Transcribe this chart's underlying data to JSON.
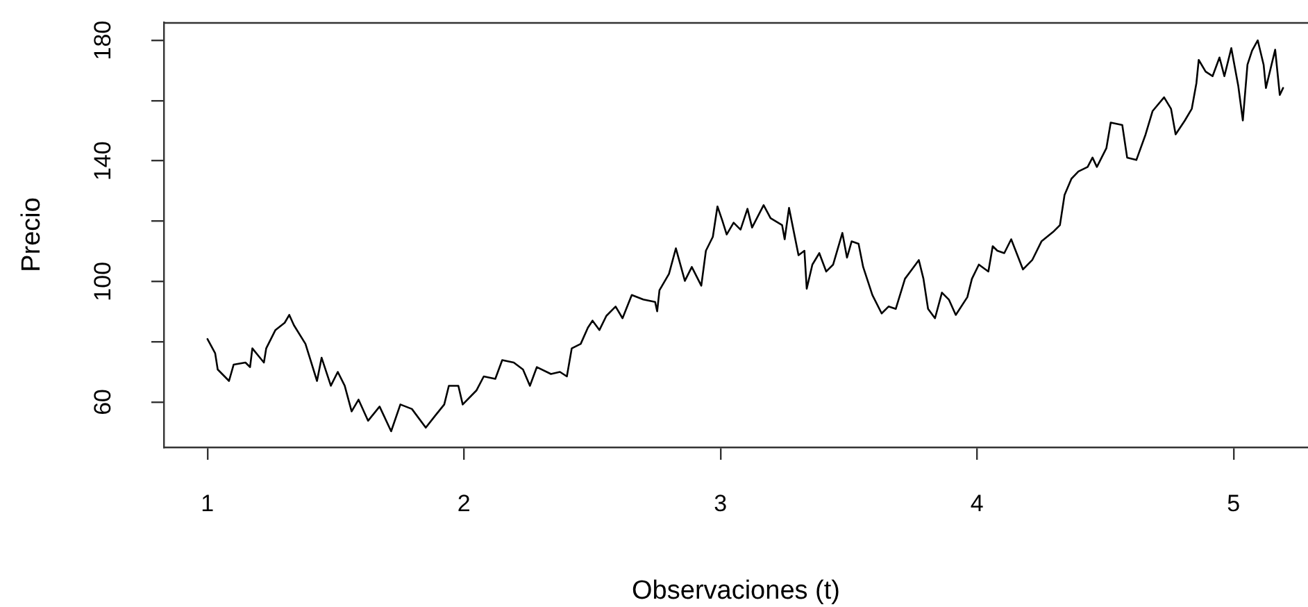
{
  "chart_data": {
    "type": "line",
    "xlabel": "Observaciones (t)",
    "ylabel": "Precio",
    "color": "#000000",
    "marker": "none",
    "x": [
      1.0,
      1.03,
      1.04,
      1.084,
      1.102,
      1.148,
      1.166,
      1.175,
      1.22,
      1.229,
      1.265,
      1.301,
      1.319,
      1.337,
      1.382,
      1.427,
      1.445,
      1.481,
      1.508,
      1.535,
      1.562,
      1.589,
      1.626,
      1.671,
      1.716,
      1.752,
      1.797,
      1.851,
      1.887,
      1.923,
      1.941,
      1.978,
      1.995,
      2.049,
      2.077,
      2.122,
      2.149,
      2.194,
      2.23,
      2.257,
      2.284,
      2.339,
      2.374,
      2.401,
      2.42,
      2.455,
      2.483,
      2.501,
      2.528,
      2.555,
      2.591,
      2.618,
      2.654,
      2.699,
      2.745,
      2.753,
      2.762,
      2.799,
      2.826,
      2.861,
      2.888,
      2.925,
      2.943,
      2.97,
      2.988,
      3.007,
      3.024,
      3.051,
      3.078,
      3.105,
      3.123,
      3.168,
      3.195,
      3.24,
      3.25,
      3.267,
      3.304,
      3.327,
      3.336,
      3.358,
      3.385,
      3.412,
      3.439,
      3.475,
      3.493,
      3.511,
      3.538,
      3.556,
      3.592,
      3.628,
      3.655,
      3.683,
      3.719,
      3.746,
      3.773,
      3.791,
      3.809,
      3.836,
      3.863,
      3.89,
      3.917,
      3.962,
      3.98,
      4.007,
      4.044,
      4.061,
      4.079,
      4.106,
      4.133,
      4.179,
      4.215,
      4.251,
      4.296,
      4.323,
      4.341,
      4.368,
      4.395,
      4.431,
      4.45,
      4.467,
      4.504,
      4.521,
      4.566,
      4.585,
      4.621,
      4.657,
      4.684,
      4.729,
      4.756,
      4.774,
      4.81,
      4.837,
      4.855,
      4.864,
      4.891,
      4.918,
      4.945,
      4.964,
      4.991,
      5.018,
      5.036,
      5.054,
      5.072,
      5.094,
      5.117,
      5.126,
      5.162,
      5.18,
      5.193
    ],
    "values": [
      80.9,
      76.2,
      70.8,
      67.0,
      72.4,
      73.1,
      71.6,
      77.8,
      73.1,
      77.8,
      83.9,
      86.3,
      88.9,
      85.5,
      79.3,
      67.0,
      74.7,
      65.4,
      70.0,
      65.4,
      56.9,
      60.8,
      53.8,
      58.5,
      50.3,
      59.2,
      57.7,
      51.5,
      55.4,
      59.2,
      65.4,
      65.4,
      59.2,
      63.9,
      68.5,
      67.7,
      73.9,
      73.1,
      70.8,
      65.4,
      71.6,
      69.3,
      70.0,
      68.5,
      77.8,
      79.3,
      84.7,
      87.0,
      83.9,
      88.6,
      91.7,
      87.8,
      95.5,
      94.0,
      93.2,
      90.1,
      97.1,
      102.5,
      111.0,
      100.2,
      104.8,
      98.6,
      110.2,
      114.8,
      124.9,
      120.2,
      115.6,
      119.5,
      117.2,
      124.1,
      117.9,
      125.3,
      121.0,
      118.7,
      114.0,
      124.4,
      108.7,
      110.2,
      97.6,
      105.6,
      109.4,
      103.3,
      105.6,
      116.1,
      107.9,
      113.3,
      112.5,
      104.8,
      95.5,
      89.4,
      91.7,
      90.9,
      100.9,
      104.0,
      107.1,
      100.9,
      90.9,
      87.8,
      96.3,
      94.0,
      88.9,
      94.8,
      100.9,
      105.6,
      103.3,
      111.7,
      110.2,
      109.4,
      114.0,
      104.0,
      107.1,
      113.3,
      116.4,
      118.7,
      128.7,
      134.1,
      136.5,
      138.0,
      141.1,
      138.0,
      144.2,
      152.7,
      151.9,
      141.1,
      140.3,
      148.8,
      156.5,
      161.1,
      157.3,
      148.8,
      153.4,
      157.3,
      165.8,
      173.5,
      169.6,
      168.1,
      174.3,
      168.1,
      177.4,
      165.0,
      153.4,
      171.9,
      176.6,
      180.0,
      171.9,
      164.2,
      176.9,
      161.9,
      164.2
    ],
    "xlim": [
      0.83,
      5.29
    ],
    "xticks": [
      1,
      2,
      3,
      4,
      5
    ],
    "ylim": [
      45,
      186
    ],
    "yticks": [
      60,
      {
        "value": 80,
        "label": null
      },
      100,
      {
        "value": 120,
        "label": null
      },
      140,
      {
        "value": 160,
        "label": null
      },
      180
    ]
  }
}
